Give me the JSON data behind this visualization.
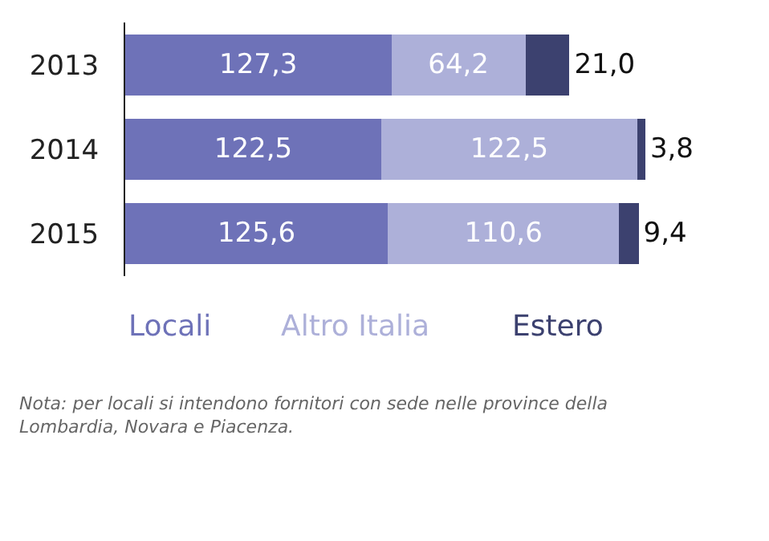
{
  "chart_data": {
    "type": "bar",
    "orientation": "horizontal",
    "stacked": true,
    "categories": [
      "2013",
      "2014",
      "2015"
    ],
    "series": [
      {
        "name": "Locali",
        "color": "#6e72b8",
        "values": [
          127.3,
          122.5,
          125.6
        ],
        "value_labels": [
          "127,3",
          "122,5",
          "125,6"
        ]
      },
      {
        "name": "Altro Italia",
        "color": "#adb0d9",
        "values": [
          64.2,
          122.5,
          110.6
        ],
        "value_labels": [
          "64,2",
          "122,5",
          "110,6"
        ]
      },
      {
        "name": "Estero",
        "color": "#3c416f",
        "values": [
          21.0,
          3.8,
          9.4
        ],
        "value_labels": [
          "21,0",
          "3,8",
          "9,4"
        ]
      }
    ],
    "legend": "bottom",
    "annotations": [
      "Nota: per locali si intendono fornitori con sede nelle province della Lombardia, Novara e Piacenza."
    ]
  }
}
